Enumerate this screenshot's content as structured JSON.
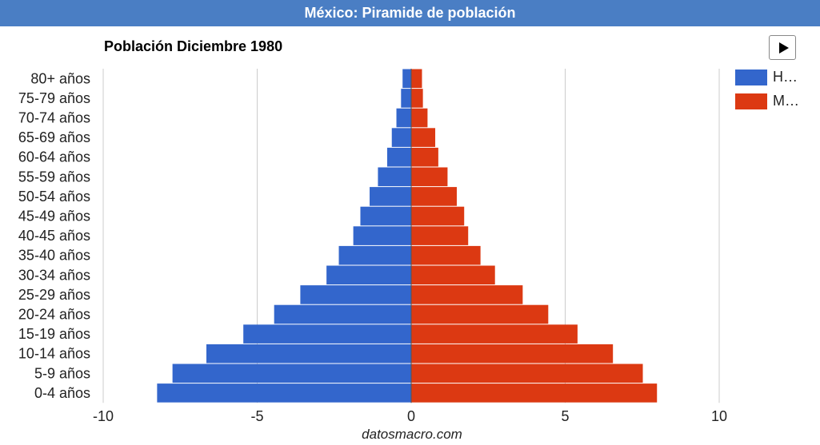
{
  "header": {
    "title": "México: Piramide de población"
  },
  "chart_data": {
    "type": "bar",
    "orientation": "horizontal",
    "title": "Población Diciembre 1980",
    "categories": [
      "80+ años",
      "75-79 años",
      "70-74 años",
      "65-69 años",
      "60-64 años",
      "55-59 años",
      "50-54 años",
      "45-49 años",
      "40-45 años",
      "35-40 años",
      "30-34 años",
      "25-29 años",
      "20-24 años",
      "15-19 años",
      "10-14 años",
      "5-9 años",
      "0-4 años"
    ],
    "series": [
      {
        "name": "H…",
        "color": "#3366cc",
        "values": [
          -0.28,
          -0.33,
          -0.48,
          -0.63,
          -0.78,
          -1.08,
          -1.35,
          -1.65,
          -1.88,
          -2.35,
          -2.75,
          -3.6,
          -4.45,
          -5.45,
          -6.65,
          -7.75,
          -8.25
        ]
      },
      {
        "name": "M…",
        "color": "#dc3912",
        "values": [
          0.35,
          0.38,
          0.53,
          0.78,
          0.88,
          1.18,
          1.48,
          1.72,
          1.85,
          2.25,
          2.72,
          3.62,
          4.45,
          5.4,
          6.55,
          7.52,
          7.98
        ]
      }
    ],
    "xlim": [
      -10,
      10
    ],
    "xticks": [
      -10,
      -5,
      0,
      5,
      10
    ],
    "xtick_labels": [
      "-10",
      "-5",
      "0",
      "5",
      "10"
    ],
    "grid": true,
    "legend": "right"
  },
  "controls": {
    "play_icon": "play-icon"
  },
  "footer": {
    "source": "datosmacro.com"
  }
}
